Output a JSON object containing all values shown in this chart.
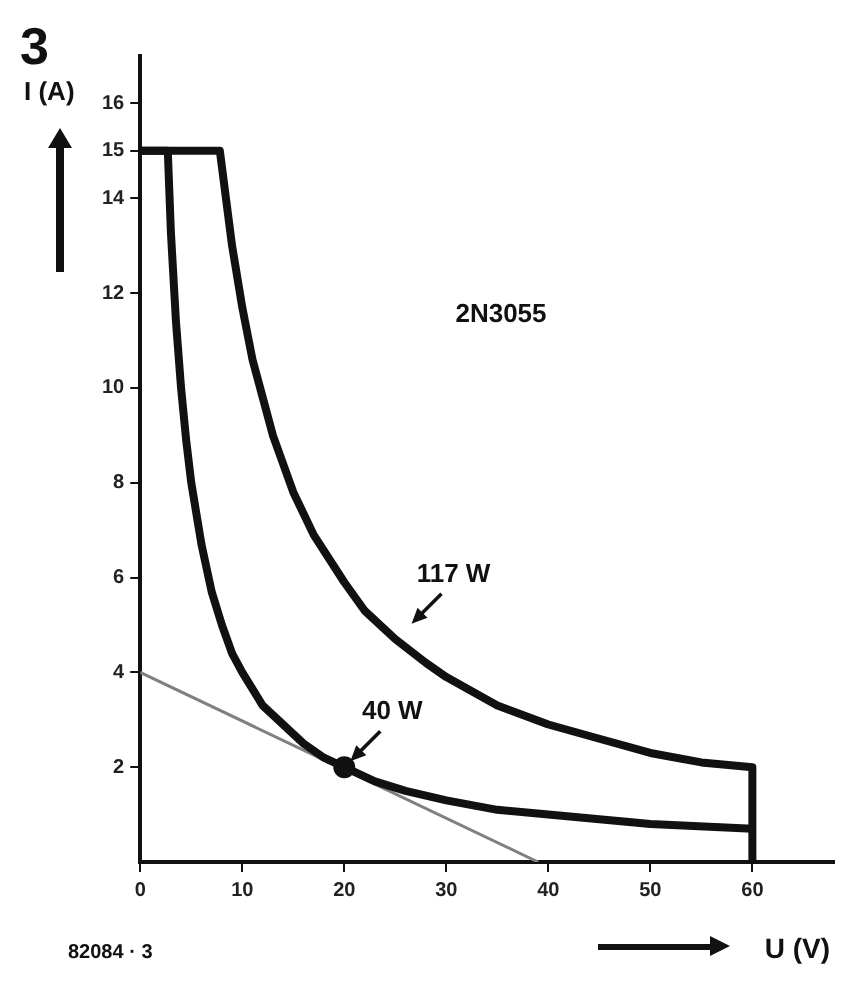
{
  "chart_data": {
    "type": "line",
    "title": "3",
    "xlabel": "U (V)",
    "ylabel": "I (A)",
    "series": [
      {
        "type": "line",
        "color": "#111111",
        "x": [
          0,
          7.8,
          9,
          10,
          11,
          12,
          13,
          14,
          15,
          17,
          20,
          22,
          25,
          28,
          30,
          35,
          40,
          45,
          50,
          55,
          60,
          60
        ],
        "values": [
          15,
          15,
          13,
          11.7,
          10.6,
          9.8,
          9,
          8.4,
          7.8,
          6.9,
          5.9,
          5.3,
          4.7,
          4.2,
          3.9,
          3.3,
          2.9,
          2.6,
          2.3,
          2.1,
          2,
          0
        ]
      },
      {
        "type": "line",
        "color": "#111111",
        "x": [
          0,
          2.7,
          3,
          3.5,
          4,
          4.5,
          5,
          6,
          7,
          8,
          9,
          10,
          12,
          14,
          16,
          18,
          20,
          23,
          26,
          30,
          35,
          40,
          50,
          60
        ],
        "values": [
          15,
          15,
          13.3,
          11.4,
          10,
          8.9,
          8,
          6.7,
          5.7,
          5,
          4.4,
          4,
          3.3,
          2.9,
          2.5,
          2.2,
          2,
          1.7,
          1.5,
          1.3,
          1.1,
          1,
          0.8,
          0.7
        ]
      },
      {
        "type": "line",
        "color": "#808080",
        "x": [
          0,
          39
        ],
        "values": [
          4,
          0
        ]
      },
      {
        "type": "scatter",
        "color": "#111111",
        "x": [
          20
        ],
        "values": [
          2
        ]
      }
    ],
    "annotations": [
      "2N3055",
      "82084 · 3",
      {
        "text": "117 W",
        "x": 26,
        "y": 4.9
      },
      {
        "text": "40 W",
        "x": 20,
        "y": 2
      }
    ],
    "xlim": [
      0,
      68
    ],
    "ylim": [
      0,
      17
    ],
    "xticks": [
      0,
      10,
      20,
      30,
      40,
      50,
      60
    ],
    "yticks": [
      2,
      4,
      6,
      8,
      10,
      12,
      14,
      15,
      16
    ],
    "grid": false,
    "legend": false
  }
}
